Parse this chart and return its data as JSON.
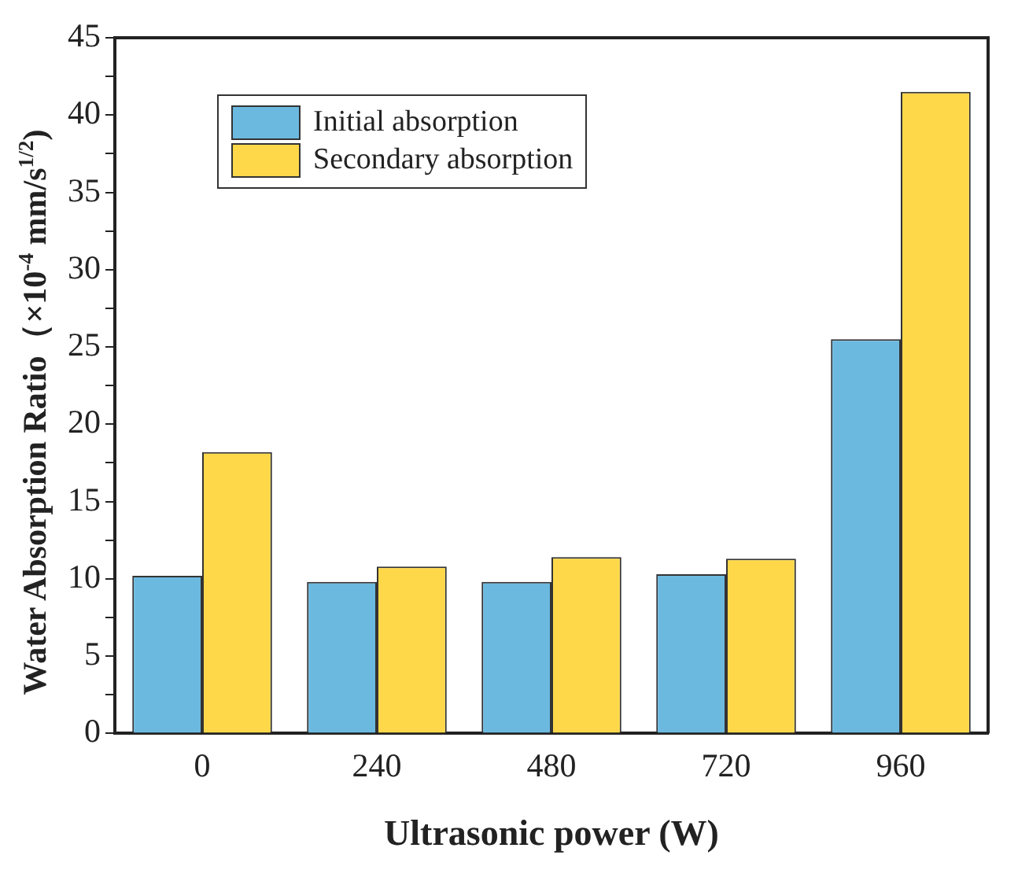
{
  "chart_data": {
    "type": "bar",
    "xlabel": "Ultrasonic power (W)",
    "ylabel": "Water Absorption Ratio（×10$^{-4}$ mm/s$^{1/2}$)",
    "categories": [
      "0",
      "240",
      "480",
      "720",
      "960"
    ],
    "series": [
      {
        "name": "Initial absorption",
        "color": "#6cb9e0",
        "values": [
          10.2,
          9.8,
          9.8,
          10.3,
          25.5
        ]
      },
      {
        "name": "Secondary absorption",
        "color": "#ffd84a",
        "values": [
          18.2,
          10.8,
          11.4,
          11.3,
          41.5
        ]
      }
    ],
    "ylim": [
      0,
      45
    ],
    "yticks": [
      0,
      {
        "value": 2.5,
        "label": null
      },
      5,
      {
        "value": 7.5,
        "label": null
      },
      10,
      {
        "value": 12.5,
        "label": null
      },
      15,
      {
        "value": 17.5,
        "label": null
      },
      20,
      {
        "value": 22.5,
        "label": null
      },
      25,
      {
        "value": 27.5,
        "label": null
      },
      30,
      {
        "value": 32.5,
        "label": null
      },
      35,
      {
        "value": 37.5,
        "label": null
      },
      40,
      {
        "value": 42.5,
        "label": null
      },
      45
    ],
    "grid": false,
    "legend": "top left"
  }
}
